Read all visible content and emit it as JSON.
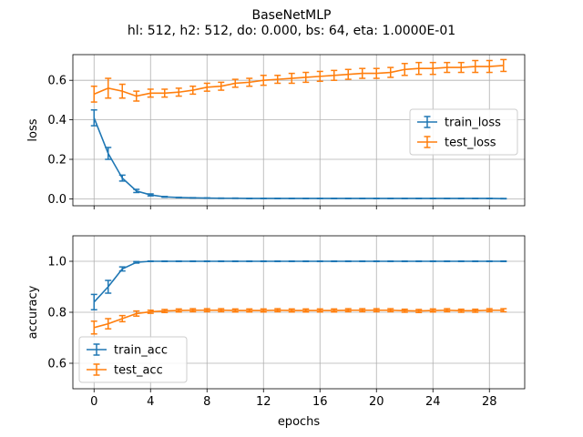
{
  "title_line1": "BaseNetMLP",
  "title_line2": "hl: 512, h2: 512, do: 0.000, bs: 64, eta: 1.0000E-01",
  "colors": {
    "blue": "#1f77b4",
    "orange": "#ff7f0e",
    "grid": "#b0b0b0"
  },
  "chart_data": [
    {
      "type": "line",
      "xlabel": "",
      "ylabel": "loss",
      "xlim": [
        -1.5,
        30.5
      ],
      "ylim": [
        -0.035,
        0.73
      ],
      "xticks": [
        0,
        4,
        8,
        12,
        16,
        20,
        24,
        28
      ],
      "yticks": [
        0.0,
        0.2,
        0.4,
        0.6
      ],
      "ytick_labels": [
        "0.0",
        "0.2",
        "0.4",
        "0.6"
      ],
      "show_xtick_labels": false,
      "grid": true,
      "legend_position": "center-right",
      "x": [
        0,
        1,
        2,
        3,
        4,
        5,
        6,
        7,
        8,
        9,
        10,
        11,
        12,
        13,
        14,
        15,
        16,
        17,
        18,
        19,
        20,
        21,
        22,
        23,
        24,
        25,
        26,
        27,
        28,
        29
      ],
      "series": [
        {
          "name": "train_loss",
          "color": "blue",
          "values": [
            0.41,
            0.23,
            0.105,
            0.04,
            0.02,
            0.01,
            0.007,
            0.005,
            0.004,
            0.003,
            0.003,
            0.002,
            0.002,
            0.002,
            0.002,
            0.002,
            0.002,
            0.002,
            0.002,
            0.002,
            0.002,
            0.002,
            0.002,
            0.002,
            0.002,
            0.002,
            0.002,
            0.002,
            0.002,
            0.001
          ],
          "errors": [
            0.04,
            0.03,
            0.015,
            0.008,
            0.005,
            0.002,
            0.001,
            0.001,
            0.001,
            0.001,
            0.001,
            0.001,
            0.001,
            0.001,
            0.001,
            0.001,
            0.001,
            0.001,
            0.001,
            0.001,
            0.001,
            0.001,
            0.001,
            0.001,
            0.001,
            0.001,
            0.001,
            0.001,
            0.001,
            0.001
          ]
        },
        {
          "name": "test_loss",
          "color": "orange",
          "values": [
            0.53,
            0.56,
            0.545,
            0.52,
            0.535,
            0.535,
            0.54,
            0.55,
            0.565,
            0.57,
            0.585,
            0.59,
            0.6,
            0.605,
            0.61,
            0.615,
            0.62,
            0.625,
            0.63,
            0.635,
            0.635,
            0.64,
            0.655,
            0.66,
            0.66,
            0.665,
            0.665,
            0.67,
            0.67,
            0.675
          ],
          "errors": [
            0.04,
            0.05,
            0.035,
            0.025,
            0.02,
            0.02,
            0.02,
            0.02,
            0.02,
            0.02,
            0.02,
            0.02,
            0.025,
            0.02,
            0.025,
            0.025,
            0.025,
            0.025,
            0.025,
            0.025,
            0.025,
            0.025,
            0.03,
            0.03,
            0.03,
            0.025,
            0.025,
            0.03,
            0.03,
            0.03
          ]
        }
      ]
    },
    {
      "type": "line",
      "xlabel": "epochs",
      "ylabel": "accuracy",
      "xlim": [
        -1.5,
        30.5
      ],
      "ylim": [
        0.5,
        1.1
      ],
      "xticks": [
        0,
        4,
        8,
        12,
        16,
        20,
        24,
        28
      ],
      "yticks": [
        0.6,
        0.8,
        1.0
      ],
      "ytick_labels": [
        "0.6",
        "0.8",
        "1.0"
      ],
      "show_xtick_labels": true,
      "grid": true,
      "legend_position": "lower-left",
      "x": [
        0,
        1,
        2,
        3,
        4,
        5,
        6,
        7,
        8,
        9,
        10,
        11,
        12,
        13,
        14,
        15,
        16,
        17,
        18,
        19,
        20,
        21,
        22,
        23,
        24,
        25,
        26,
        27,
        28,
        29
      ],
      "series": [
        {
          "name": "train_acc",
          "color": "blue",
          "values": [
            0.84,
            0.9,
            0.97,
            0.996,
            1.0,
            1.0,
            1.0,
            1.0,
            1.0,
            1.0,
            1.0,
            1.0,
            1.0,
            1.0,
            1.0,
            1.0,
            1.0,
            1.0,
            1.0,
            1.0,
            1.0,
            1.0,
            1.0,
            1.0,
            1.0,
            1.0,
            1.0,
            1.0,
            1.0,
            1.0
          ],
          "errors": [
            0.03,
            0.025,
            0.008,
            0.003,
            0.001,
            0.001,
            0.001,
            0.001,
            0.001,
            0.001,
            0.001,
            0.001,
            0.001,
            0.001,
            0.001,
            0.001,
            0.001,
            0.001,
            0.001,
            0.001,
            0.001,
            0.001,
            0.001,
            0.001,
            0.001,
            0.001,
            0.001,
            0.001,
            0.001,
            0.001
          ]
        },
        {
          "name": "test_acc",
          "color": "orange",
          "values": [
            0.74,
            0.755,
            0.775,
            0.795,
            0.802,
            0.805,
            0.807,
            0.808,
            0.808,
            0.808,
            0.807,
            0.807,
            0.807,
            0.808,
            0.807,
            0.807,
            0.807,
            0.807,
            0.808,
            0.808,
            0.808,
            0.808,
            0.806,
            0.805,
            0.807,
            0.808,
            0.806,
            0.806,
            0.808,
            0.808
          ],
          "errors": [
            0.025,
            0.02,
            0.012,
            0.01,
            0.006,
            0.006,
            0.006,
            0.006,
            0.006,
            0.006,
            0.006,
            0.006,
            0.006,
            0.006,
            0.006,
            0.006,
            0.006,
            0.006,
            0.006,
            0.006,
            0.006,
            0.006,
            0.006,
            0.006,
            0.006,
            0.006,
            0.006,
            0.006,
            0.006,
            0.006
          ]
        }
      ]
    }
  ]
}
